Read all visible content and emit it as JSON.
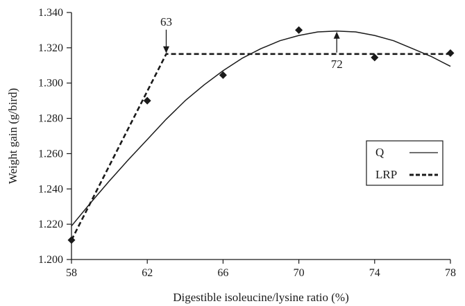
{
  "chart_data": {
    "type": "scatter",
    "xlabel": "Digestible isoleucine/lysine ratio (%)",
    "ylabel": "Weight gain (g/bird)",
    "xlim": [
      58,
      78
    ],
    "ylim": [
      1.2,
      1.34
    ],
    "x_ticks": [
      "58",
      "62",
      "66",
      "70",
      "74",
      "78"
    ],
    "y_ticks": [
      "1.200",
      "1.220",
      "1.240",
      "1.260",
      "1.280",
      "1.300",
      "1.320",
      "1.340"
    ],
    "grid": false,
    "legend_position": "right",
    "observed": {
      "x": [
        58,
        62,
        66,
        70,
        74,
        78
      ],
      "y": [
        1.211,
        1.29,
        1.3045,
        1.33,
        1.3145,
        1.317
      ]
    },
    "series": [
      {
        "name": "Q",
        "style": "solid",
        "x": [
          58,
          59,
          60,
          61,
          62,
          63,
          64,
          65,
          66,
          67,
          68,
          69,
          70,
          71,
          72,
          73,
          74,
          75,
          76,
          77,
          78
        ],
        "y": [
          1.219,
          1.232,
          1.2445,
          1.2565,
          1.268,
          1.2795,
          1.29,
          1.299,
          1.307,
          1.314,
          1.3195,
          1.324,
          1.327,
          1.329,
          1.3295,
          1.329,
          1.327,
          1.324,
          1.3195,
          1.315,
          1.3095
        ]
      },
      {
        "name": "LRP",
        "style": "dashed",
        "x": [
          58,
          63,
          78
        ],
        "y": [
          1.211,
          1.3165,
          1.3165
        ]
      }
    ],
    "annotations": [
      {
        "text": "63",
        "x": 63,
        "y": 1.3165,
        "arrow": "down"
      },
      {
        "text": "72",
        "x": 72,
        "y": 1.3165,
        "arrow": "up"
      }
    ]
  }
}
